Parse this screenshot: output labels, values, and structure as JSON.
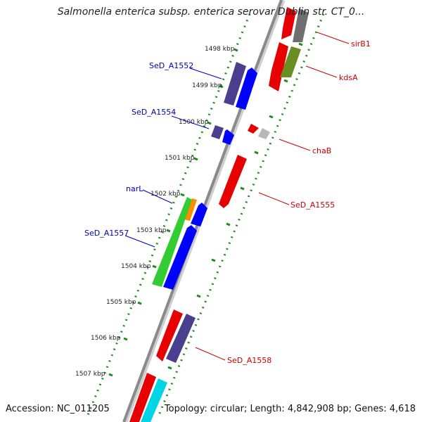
{
  "title": "Salmonella enterica subsp. enterica serovar Dublin str. CT_0...",
  "footer": {
    "accession": "Accession: NC_011205",
    "summary": "Topology: circular; Length: 4,842,908 bp; Genes: 4,618"
  },
  "colors": {
    "backbone": "#8a8a8a",
    "tick_ring": "#1f8a1f",
    "label_forward": "#cc0000",
    "label_reverse": "#0000bb"
  },
  "tick_labels": [
    "1498 kbp",
    "1499 kbp",
    "1500 kbp",
    "1501 kbp",
    "1502 kbp",
    "1503 kbp",
    "1504 kbp",
    "1505 kbp",
    "1506 kbp",
    "1507 kbp"
  ],
  "gene_labels": {
    "sirB1": "sirB1",
    "kdsA": "kdsA",
    "chaB": "chaB",
    "SeD_A1555": "SeD_A1555",
    "SeD_A1558": "SeD_A1558",
    "SeD_A1552": "SeD_A1552",
    "SeD_A1554": "SeD_A1554",
    "narL": "narL",
    "SeD_A1557": "SeD_A1557"
  }
}
